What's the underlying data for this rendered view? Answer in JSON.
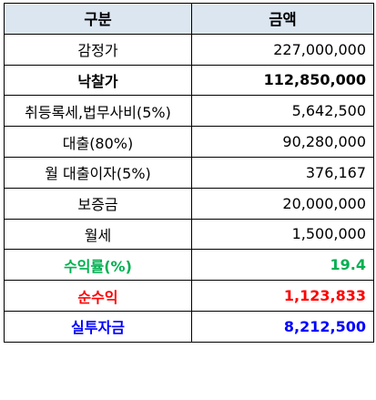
{
  "table": {
    "headers": [
      "구분",
      "금액"
    ],
    "rows": [
      {
        "label": "감정가",
        "amount": "227,000,000",
        "style": "normal",
        "color": "#000000"
      },
      {
        "label": "낙찰가",
        "amount": "112,850,000",
        "style": "bold",
        "color": "#000000"
      },
      {
        "label": "취등록세,법무사비(5%)",
        "amount": "5,642,500",
        "style": "normal",
        "color": "#000000"
      },
      {
        "label": "대출(80%)",
        "amount": "90,280,000",
        "style": "normal",
        "color": "#000000"
      },
      {
        "label": "월 대출이자(5%)",
        "amount": "376,167",
        "style": "normal",
        "color": "#000000"
      },
      {
        "label": "보증금",
        "amount": "20,000,000",
        "style": "normal",
        "color": "#000000"
      },
      {
        "label": "월세",
        "amount": "1,500,000",
        "style": "normal",
        "color": "#000000"
      },
      {
        "label": "수익률(%)",
        "amount": "19.4",
        "style": "bold",
        "color": "#00b050"
      },
      {
        "label": "순수익",
        "amount": "1,123,833",
        "style": "bold",
        "color": "#ff0000"
      },
      {
        "label": "실투자금",
        "amount": "8,212,500",
        "style": "bold",
        "color": "#0000ff"
      }
    ]
  },
  "colors": {
    "header_bg": "#dce6f1",
    "border": "#000000"
  }
}
